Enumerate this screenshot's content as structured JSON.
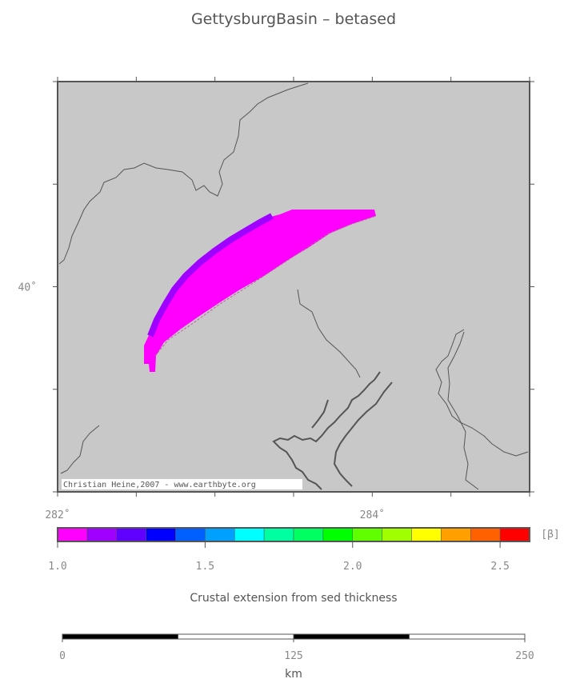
{
  "title": "GettysburgBasin – betased",
  "map": {
    "xlim": [
      282,
      285
    ],
    "ylim": [
      39,
      41
    ],
    "xticks": [
      {
        "value": 282,
        "label": "282˚"
      },
      {
        "value": 284,
        "label": "284˚"
      }
    ],
    "xticks_minor": [
      282.5,
      283,
      283.5,
      284.5,
      285
    ],
    "yticks": [
      {
        "value": 40,
        "label": "40˚"
      }
    ],
    "yticks_minor": [
      39,
      39.5,
      40.5,
      41
    ],
    "credit": "Christian Heine,2007 - www.earthbyte.org",
    "land_color": "#c8c8c8"
  },
  "colorbar": {
    "lim": [
      1.0,
      2.6
    ],
    "unit": "[β]",
    "label": "Crustal extension from sed thickness",
    "colors": [
      "#ff00ff",
      "#a000ff",
      "#6000ff",
      "#0000ff",
      "#0060ff",
      "#00a0ff",
      "#00ffff",
      "#00ffa0",
      "#00ff60",
      "#00ff00",
      "#60ff00",
      "#a0ff00",
      "#ffff00",
      "#ffa000",
      "#ff6000",
      "#ff0000"
    ],
    "ticks": [
      {
        "value": 1.0,
        "label": "1.0"
      },
      1.5,
      {
        "value": 2.0,
        "label": "2.0"
      },
      2.5
    ]
  },
  "scalebar": {
    "lim": [
      0,
      250
    ],
    "ticks": [
      0,
      125,
      250
    ],
    "unit": "km"
  }
}
